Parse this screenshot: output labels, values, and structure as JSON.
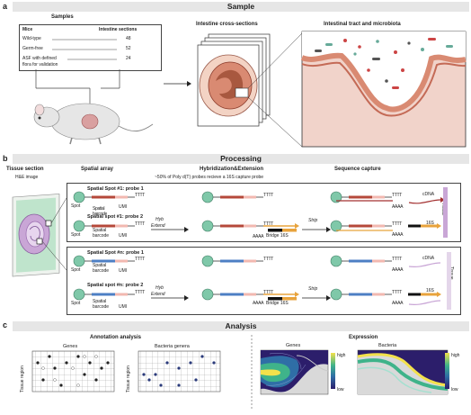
{
  "panels": {
    "a": "a",
    "b": "b",
    "c": "c"
  },
  "sections": {
    "sample": "Sample",
    "processing": "Processing",
    "analysis": "Analysis"
  },
  "samples": {
    "title": "Samples",
    "col_mice": "Mice",
    "col_sections": "Intestine sections",
    "rows": [
      {
        "mouse": "Wild-type",
        "n": "48"
      },
      {
        "mouse": "Germ-free",
        "n": "52"
      },
      {
        "mouse": "ASF with defined",
        "n": "24"
      }
    ],
    "row3_cont": "flora for validation"
  },
  "cross_sections_title": "Intestine cross-sections",
  "tract_title": "Intestinal tract and microbiota",
  "processing": {
    "tissue_section": "Tissue section",
    "he_image": "H&E image",
    "spatial_array": "Spatial array",
    "hyb_title": "Hybridization&Extension",
    "hyb_sub": "~50% of Poly d(T) probes recieve a 16S capture probe",
    "seq_capture": "Sequence capture",
    "spot1_probe1": "Spatial Spot #1: probe 1",
    "spot1_probe2": "Spatial spot #1: probe 2",
    "spotn_probe1": "Spatial Spot #n: probe 1",
    "spotn_probe2": "Spatial spot #n: probe 2",
    "spot": "Spot",
    "spatial": "Spatial",
    "barcode": "barcode",
    "umi": "UMI",
    "tttt": "TTTT",
    "aaaa": "AAAA",
    "hyb": "Hyb",
    "extend": "Extend",
    "strip": "Strip",
    "bridge16s": "Bridge  16S",
    "cdna": "cDNA",
    "s16": "16S",
    "tissue": "Tissue"
  },
  "analysis": {
    "annotation_title": "Annotation analysis",
    "genes": "Genes",
    "bacteria_genera": "Bacteria genera",
    "tissue_region": "Tissue region",
    "expression_title": "Expression",
    "genes_expr": "Genes",
    "bacteria_expr": "Bacteria",
    "high": "high",
    "low": "low"
  },
  "colors": {
    "spot": "#7fc8a9",
    "barcode1": "#b5483a",
    "barcoden": "#4d7fc4",
    "umi": "#f2b8b0",
    "orange": "#e8a33c",
    "black": "#111111",
    "cdna": "#a33030",
    "s16": "#e8a33c",
    "tissue": "#c9a6d6"
  }
}
